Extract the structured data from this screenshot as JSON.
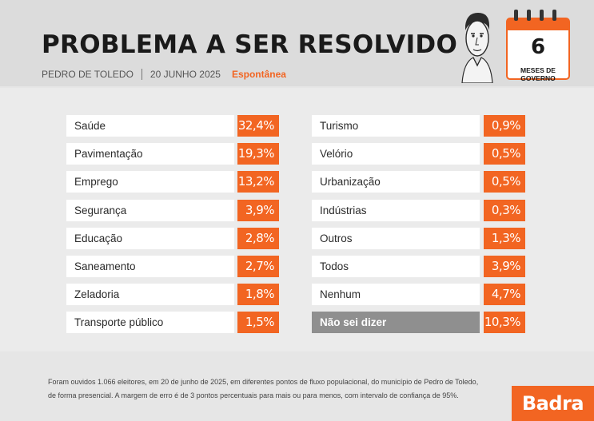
{
  "header": {
    "title": "PROBLEMA A SER RESOLVIDO",
    "location": "PEDRO DE TOLEDO",
    "date": "20 JUNHO 2025",
    "type": "Espontânea",
    "calendar_number": "6",
    "calendar_label": "MESES DE GOVERNO"
  },
  "chart_data": {
    "type": "table",
    "categories": [
      "Saúde",
      "Pavimentação",
      "Emprego",
      "Segurança",
      "Educação",
      "Saneamento",
      "Zeladoria",
      "Transporte público",
      "Turismo",
      "Velório",
      "Urbanização",
      "Indústrias",
      "Outros",
      "Todos",
      "Nenhum",
      "Não sei dizer"
    ],
    "values": [
      32.4,
      19.3,
      13.2,
      3.9,
      2.8,
      2.7,
      1.8,
      1.5,
      0.9,
      0.5,
      0.5,
      0.3,
      1.3,
      3.9,
      4.7,
      10.3
    ],
    "value_labels": [
      "32,4%",
      "19,3%",
      "13,2%",
      "3,9%",
      "2,8%",
      "2,7%",
      "1,8%",
      "1,5%",
      "0,9%",
      "0,5%",
      "0,5%",
      "0,3%",
      "1,3%",
      "3,9%",
      "4,7%",
      "10,3%"
    ],
    "highlight_category": "Não sei dizer"
  },
  "footer": {
    "line1": "Foram ouvidos 1.066 eleitores, em 20 de junho de 2025, em diferentes pontos de fluxo populacional, do município de Pedro de Toledo,",
    "line2": "de forma presencial. A margem de erro é de 3 pontos percentuais para mais ou para menos, com intervalo de confiança de 95%."
  },
  "brand": "Badra",
  "colors": {
    "accent": "#f26522",
    "highlight": "#8f8f8f"
  }
}
